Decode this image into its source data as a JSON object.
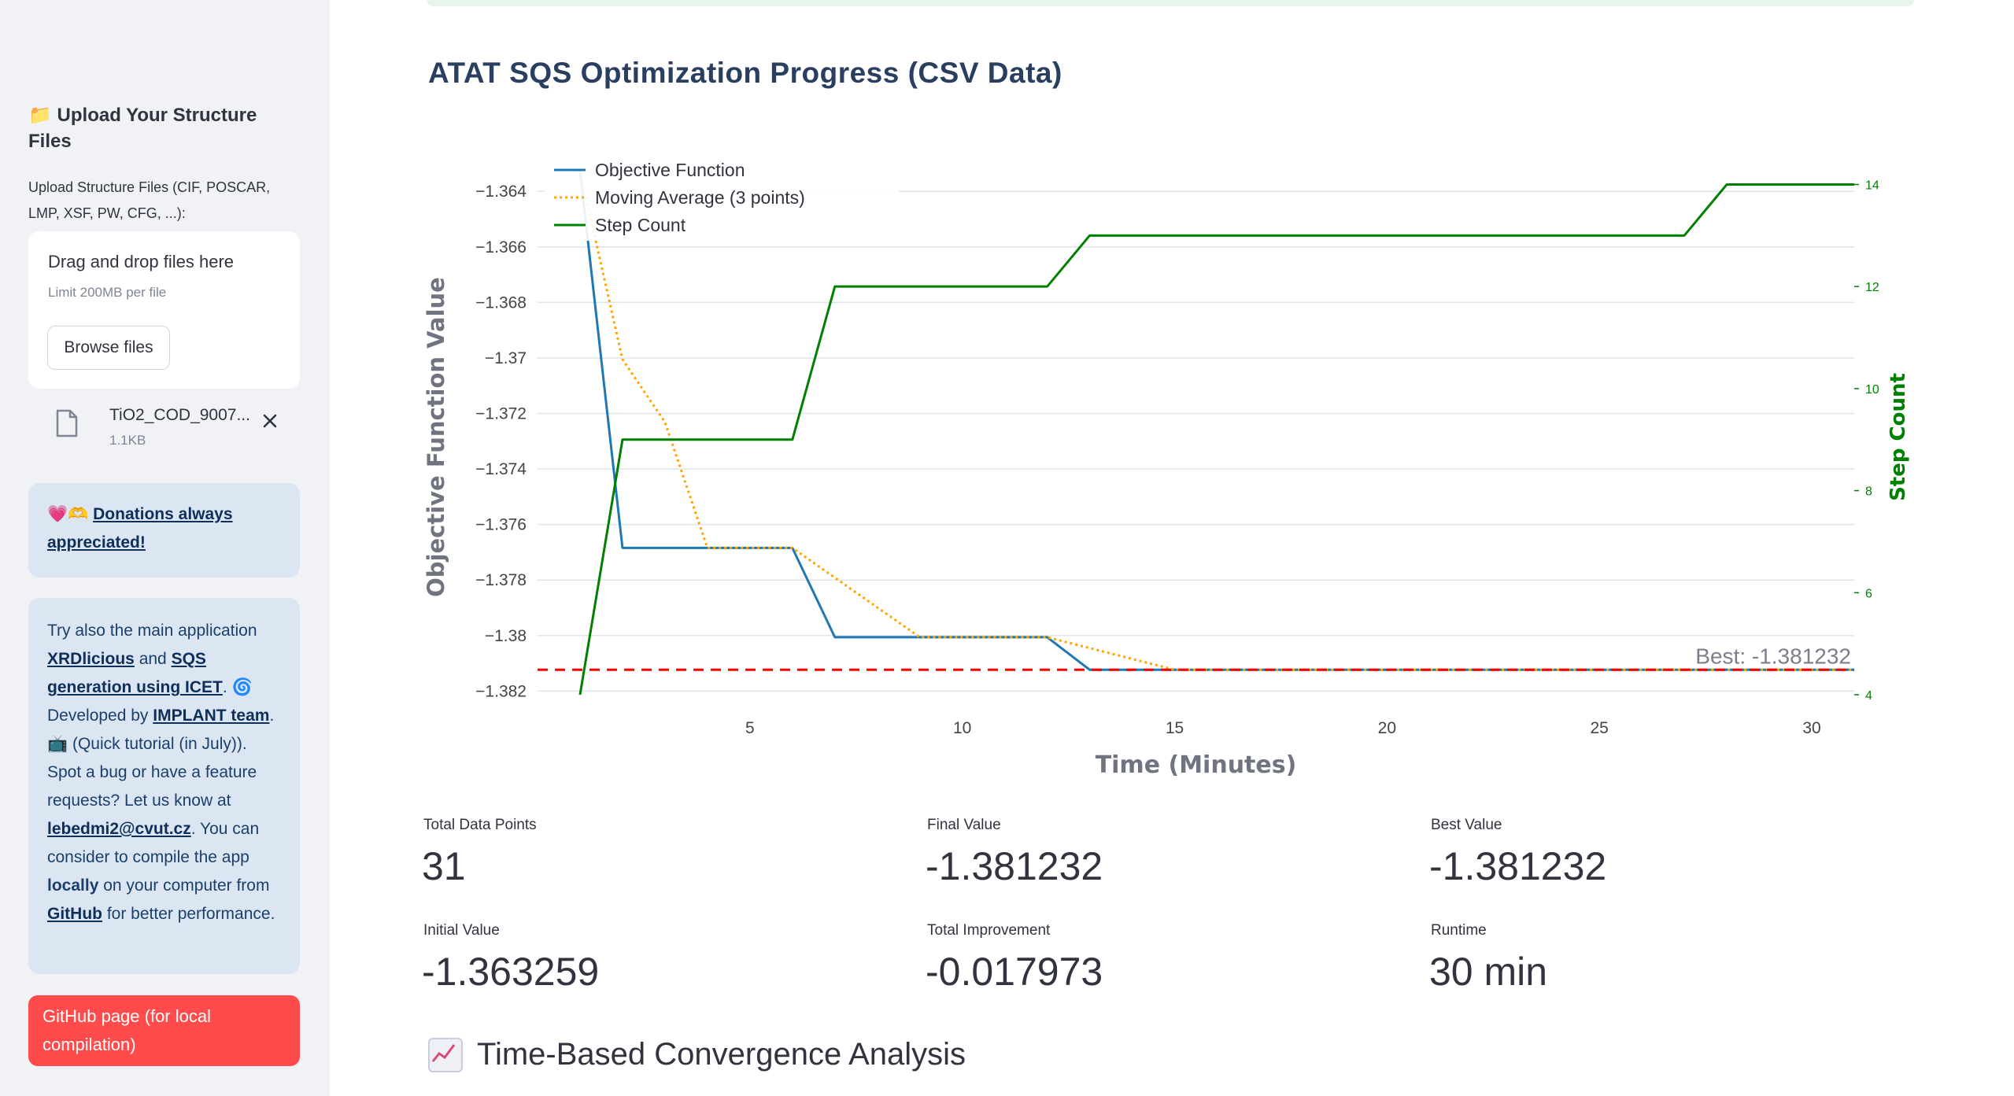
{
  "sidebar": {
    "upload_title": "📁 Upload Your Structure Files",
    "upload_label": "Upload Structure Files (CIF, POSCAR, LMP, XSF, PW, CFG, ...):",
    "dropzone_text": "Drag and drop files here",
    "dropzone_limit": "Limit 200MB per file",
    "browse_button": "Browse files",
    "file_name": "TiO2_COD_9007...",
    "file_size": "1.1KB",
    "donate_emoji": "💗🫶",
    "donate_link": "Donations always appreciated!",
    "about": {
      "t1": "Try also the main application ",
      "l1": "XRDlicious",
      "t2": " and ",
      "l2": "SQS generation using ICET",
      "t3": ". 🌀 Developed by ",
      "l3": "IMPLANT team",
      "t4": ". 📺 (Quick tutorial (in July)). Spot a bug or have a feature requests? Let us know at ",
      "l4": "lebedmi2@cvut.cz",
      "t5": ". You can consider to compile the app ",
      "b1": "locally",
      "t6": " on your computer from ",
      "l5": "GitHub",
      "t7": " for better performance."
    },
    "github_button": "GitHub page (for local compilation)"
  },
  "main": {
    "title": "ATAT SQS Optimization Progress (CSV Data)",
    "section_heading": "Time-Based Convergence Analysis"
  },
  "metrics": [
    {
      "label": "Total Data Points",
      "value": "31"
    },
    {
      "label": "Final Value",
      "value": "-1.381232"
    },
    {
      "label": "Best Value",
      "value": "-1.381232"
    },
    {
      "label": "Initial Value",
      "value": "-1.363259"
    },
    {
      "label": "Total Improvement",
      "value": "-0.017973"
    },
    {
      "label": "Runtime",
      "value": "30 min"
    }
  ],
  "colors": {
    "objective": "#1f77b4",
    "moving_avg": "#ffa500",
    "step": "#008000",
    "best_line": "#ff0000"
  },
  "chart_data": {
    "type": "line",
    "xlabel": "Time (Minutes)",
    "ylabel": "Objective Function Value",
    "y2label": "Step Count",
    "xlim": [
      0,
      31
    ],
    "xticks": [
      5,
      10,
      15,
      20,
      25,
      30
    ],
    "ylim": [
      -1.3825,
      -1.3632
    ],
    "yticks": [
      -1.364,
      -1.366,
      -1.368,
      -1.37,
      -1.372,
      -1.374,
      -1.376,
      -1.378,
      -1.38,
      -1.382
    ],
    "ytick_labels": [
      "−1.364",
      "−1.366",
      "−1.368",
      "−1.37",
      "−1.372",
      "−1.374",
      "−1.376",
      "−1.378",
      "−1.38",
      "−1.382"
    ],
    "y2lim": [
      3.8,
      14.3
    ],
    "y2ticks": [
      4,
      6,
      8,
      10,
      12,
      14
    ],
    "legend_position": "top-left",
    "x": [
      1,
      2,
      3,
      4,
      5,
      6,
      7,
      8,
      9,
      10,
      11,
      12,
      13,
      14,
      15,
      16,
      17,
      18,
      19,
      20,
      21,
      22,
      23,
      24,
      25,
      26,
      27,
      28,
      29,
      30,
      31
    ],
    "series": [
      {
        "name": "Objective Function",
        "axis": "y",
        "style": "solid",
        "values": [
          -1.363259,
          -1.376843,
          -1.376843,
          -1.376843,
          -1.376843,
          -1.376843,
          -1.38006,
          -1.38006,
          -1.38006,
          -1.38006,
          -1.38006,
          -1.38006,
          -1.381232,
          -1.381232,
          -1.381232,
          -1.381232,
          -1.381232,
          -1.381232,
          -1.381232,
          -1.381232,
          -1.381232,
          -1.381232,
          -1.381232,
          -1.381232,
          -1.381232,
          -1.381232,
          -1.381232,
          -1.381232,
          -1.381232,
          -1.381232,
          -1.381232
        ]
      },
      {
        "name": "Moving Average (3 points)",
        "axis": "y",
        "style": "dotted",
        "values": [
          -1.363259,
          -1.370051,
          -1.372315,
          -1.376843,
          -1.376843,
          -1.376843,
          -1.377915,
          -1.378988,
          -1.38006,
          -1.38006,
          -1.38006,
          -1.38006,
          -1.380451,
          -1.380841,
          -1.381232,
          -1.381232,
          -1.381232,
          -1.381232,
          -1.381232,
          -1.381232,
          -1.381232,
          -1.381232,
          -1.381232,
          -1.381232,
          -1.381232,
          -1.381232,
          -1.381232,
          -1.381232,
          -1.381232,
          -1.381232,
          -1.381232
        ]
      },
      {
        "name": "Step Count",
        "axis": "y2",
        "style": "solid",
        "values": [
          4,
          9,
          9,
          9,
          9,
          9,
          12,
          12,
          12,
          12,
          12,
          12,
          13,
          13,
          13,
          13,
          13,
          13,
          13,
          13,
          13,
          13,
          13,
          13,
          13,
          13,
          13,
          14,
          14,
          14,
          14
        ]
      }
    ],
    "best_value": -1.381232,
    "best_annotation": "Best: -1.381232"
  }
}
